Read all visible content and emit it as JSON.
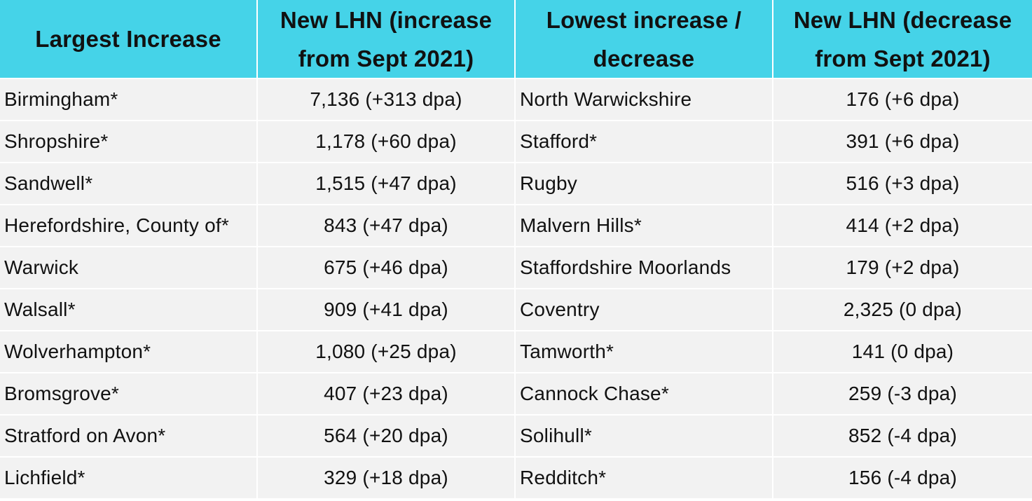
{
  "headers": [
    "Largest Increase",
    "New LHN (increase from Sept 2021)",
    "Lowest increase / decrease",
    "New LHN (decrease from Sept 2021)"
  ],
  "rows": [
    [
      "Birmingham*",
      "7,136 (+313 dpa)",
      "North Warwickshire",
      "176 (+6 dpa)"
    ],
    [
      "Shropshire*",
      "1,178 (+60 dpa)",
      "Stafford*",
      "391 (+6 dpa)"
    ],
    [
      "Sandwell*",
      "1,515 (+47 dpa)",
      "Rugby",
      "516 (+3 dpa)"
    ],
    [
      "Herefordshire, County of*",
      "843 (+47 dpa)",
      "Malvern Hills*",
      "414 (+2 dpa)"
    ],
    [
      "Warwick",
      "675 (+46 dpa)",
      "Staffordshire Moorlands",
      "179 (+2 dpa)"
    ],
    [
      "Walsall*",
      "909 (+41 dpa)",
      "Coventry",
      "2,325 (0 dpa)"
    ],
    [
      "Wolverhampton*",
      "1,080 (+25 dpa)",
      "Tamworth*",
      "141 (0 dpa)"
    ],
    [
      "Bromsgrove*",
      "407 (+23 dpa)",
      "Cannock Chase*",
      "259 (-3 dpa)"
    ],
    [
      "Stratford on Avon*",
      "564 (+20 dpa)",
      "Solihull*",
      "852 (-4 dpa)"
    ],
    [
      "Lichfield*",
      "329 (+18 dpa)",
      "Redditch*",
      "156 (-4 dpa)"
    ]
  ],
  "colors": {
    "header_background": "#45d3e8",
    "row_background": "#f2f2f2",
    "grid_lines": "#ffffff",
    "text": "#111111"
  }
}
